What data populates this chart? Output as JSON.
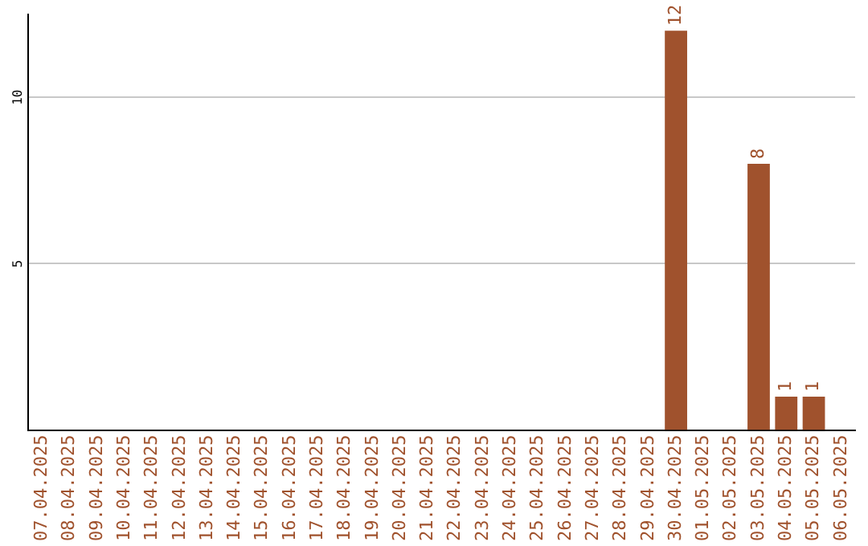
{
  "chart_data": {
    "type": "bar",
    "categories": [
      "07.04.2025",
      "08.04.2025",
      "09.04.2025",
      "10.04.2025",
      "11.04.2025",
      "12.04.2025",
      "13.04.2025",
      "14.04.2025",
      "15.04.2025",
      "16.04.2025",
      "17.04.2025",
      "18.04.2025",
      "19.04.2025",
      "20.04.2025",
      "21.04.2025",
      "22.04.2025",
      "23.04.2025",
      "24.04.2025",
      "25.04.2025",
      "26.04.2025",
      "27.04.2025",
      "28.04.2025",
      "29.04.2025",
      "30.04.2025",
      "01.05.2025",
      "02.05.2025",
      "03.05.2025",
      "04.05.2025",
      "05.05.2025",
      "06.05.2025"
    ],
    "values": [
      0,
      0,
      0,
      0,
      0,
      0,
      0,
      0,
      0,
      0,
      0,
      0,
      0,
      0,
      0,
      0,
      0,
      0,
      0,
      0,
      0,
      0,
      0,
      12,
      0,
      0,
      8,
      1,
      1,
      0
    ],
    "value_labels": [
      null,
      null,
      null,
      null,
      null,
      null,
      null,
      null,
      null,
      null,
      null,
      null,
      null,
      null,
      null,
      null,
      null,
      null,
      null,
      null,
      null,
      null,
      null,
      "12",
      null,
      null,
      "8",
      "1",
      "1",
      null
    ],
    "color": "#a0522d",
    "ylim": [
      0,
      12.5
    ],
    "yticks": [
      5,
      10
    ],
    "grid": "y",
    "legend": false
  }
}
